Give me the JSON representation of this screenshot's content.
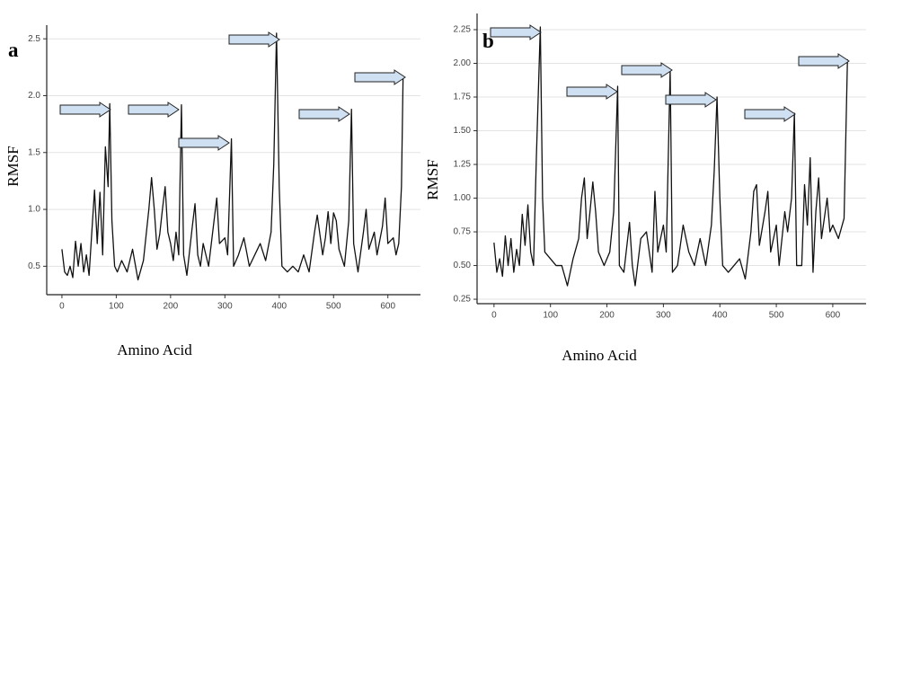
{
  "chart_data": [
    {
      "type": "line",
      "panel": "a",
      "ylabel": "RMSF",
      "xlabel": "Amino Acid",
      "xlim": [
        -28,
        660
      ],
      "ylim": [
        0.25,
        2.62
      ],
      "xticks": [
        0,
        100,
        200,
        300,
        400,
        500,
        600
      ],
      "yticks": [
        0.5,
        {
          "value": 1,
          "label": "1.0"
        },
        1.5,
        {
          "value": 2,
          "label": "2.0"
        },
        2.5
      ],
      "grid": true,
      "series": [
        {
          "color": "#111111",
          "x": [
            0,
            5,
            10,
            15,
            20,
            25,
            30,
            35,
            40,
            45,
            50,
            55,
            60,
            65,
            70,
            75,
            80,
            85,
            88,
            92,
            97,
            102,
            110,
            120,
            130,
            140,
            150,
            160,
            165,
            170,
            175,
            180,
            185,
            190,
            195,
            200,
            205,
            210,
            215,
            220,
            224,
            230,
            240,
            245,
            250,
            255,
            260,
            270,
            280,
            285,
            290,
            300,
            305,
            312,
            316,
            325,
            335,
            345,
            355,
            365,
            375,
            385,
            390,
            395,
            400,
            405,
            415,
            425,
            435,
            445,
            455,
            465,
            470,
            480,
            485,
            490,
            495,
            500,
            505,
            510,
            520,
            528,
            533,
            537,
            545,
            555,
            560,
            565,
            575,
            580,
            590,
            595,
            600,
            610,
            615,
            620,
            625,
            628
          ],
          "values": [
            0.65,
            0.45,
            0.42,
            0.5,
            0.4,
            0.72,
            0.5,
            0.7,
            0.45,
            0.6,
            0.42,
            0.8,
            1.17,
            0.7,
            1.15,
            0.6,
            1.55,
            1.2,
            1.93,
            0.9,
            0.5,
            0.45,
            0.55,
            0.45,
            0.65,
            0.38,
            0.55,
            1.0,
            1.28,
            1.0,
            0.65,
            0.78,
            1.0,
            1.2,
            0.8,
            0.7,
            0.55,
            0.8,
            0.6,
            1.92,
            0.6,
            0.42,
            0.85,
            1.05,
            0.6,
            0.5,
            0.7,
            0.5,
            0.9,
            1.1,
            0.7,
            0.75,
            0.6,
            1.62,
            0.5,
            0.6,
            0.75,
            0.5,
            0.6,
            0.7,
            0.55,
            0.8,
            1.4,
            2.55,
            1.2,
            0.5,
            0.45,
            0.5,
            0.45,
            0.6,
            0.45,
            0.8,
            0.95,
            0.6,
            0.75,
            0.98,
            0.7,
            0.97,
            0.9,
            0.65,
            0.5,
            0.9,
            1.88,
            0.7,
            0.45,
            0.8,
            1.0,
            0.65,
            0.8,
            0.6,
            0.85,
            1.1,
            0.7,
            0.75,
            0.6,
            0.7,
            1.2,
            2.17
          ]
        }
      ]
    },
    {
      "type": "line",
      "panel": "b",
      "ylabel": "RMSF",
      "xlabel": "Amino Acid",
      "xlim": [
        -30,
        659
      ],
      "ylim": [
        0.217,
        2.37
      ],
      "xticks": [
        0,
        100,
        200,
        300,
        400,
        500,
        600
      ],
      "yticks": [
        0.25,
        {
          "value": 0.5,
          "label": "0.50"
        },
        0.75,
        {
          "value": 1,
          "label": "1.00"
        },
        1.25,
        {
          "value": 1.5,
          "label": "1.50"
        },
        1.75,
        {
          "value": 2,
          "label": "2.00"
        },
        2.25
      ],
      "grid": true,
      "series": [
        {
          "color": "#111111",
          "x": [
            0,
            5,
            10,
            15,
            20,
            25,
            30,
            35,
            40,
            45,
            50,
            55,
            60,
            65,
            70,
            75,
            82,
            86,
            90,
            100,
            110,
            120,
            130,
            140,
            150,
            155,
            160,
            165,
            170,
            175,
            180,
            185,
            195,
            205,
            212,
            219,
            222,
            230,
            240,
            245,
            250,
            260,
            270,
            280,
            285,
            290,
            300,
            305,
            312,
            316,
            325,
            335,
            345,
            355,
            365,
            375,
            385,
            390,
            395,
            400,
            405,
            415,
            425,
            435,
            445,
            455,
            460,
            465,
            470,
            480,
            485,
            490,
            500,
            505,
            515,
            520,
            527,
            532,
            536,
            545,
            550,
            555,
            560,
            565,
            570,
            575,
            580,
            590,
            595,
            600,
            610,
            620,
            626
          ],
          "values": [
            0.67,
            0.45,
            0.55,
            0.42,
            0.72,
            0.5,
            0.7,
            0.45,
            0.62,
            0.5,
            0.88,
            0.65,
            0.95,
            0.6,
            0.5,
            1.3,
            2.27,
            1.0,
            0.6,
            0.55,
            0.5,
            0.5,
            0.35,
            0.55,
            0.7,
            1.0,
            1.15,
            0.7,
            0.9,
            1.12,
            0.9,
            0.6,
            0.5,
            0.6,
            0.9,
            1.83,
            0.5,
            0.45,
            0.82,
            0.5,
            0.35,
            0.7,
            0.75,
            0.45,
            1.05,
            0.6,
            0.8,
            0.6,
            1.95,
            0.45,
            0.5,
            0.8,
            0.6,
            0.5,
            0.7,
            0.5,
            0.8,
            1.2,
            1.75,
            1.0,
            0.5,
            0.45,
            0.5,
            0.55,
            0.4,
            0.75,
            1.05,
            1.1,
            0.65,
            0.9,
            1.05,
            0.6,
            0.8,
            0.5,
            0.9,
            0.75,
            1.0,
            1.63,
            0.5,
            0.5,
            1.1,
            0.8,
            1.3,
            0.45,
            0.9,
            1.15,
            0.7,
            1.0,
            0.75,
            0.8,
            0.7,
            0.85,
            2.03
          ]
        }
      ]
    }
  ]
}
